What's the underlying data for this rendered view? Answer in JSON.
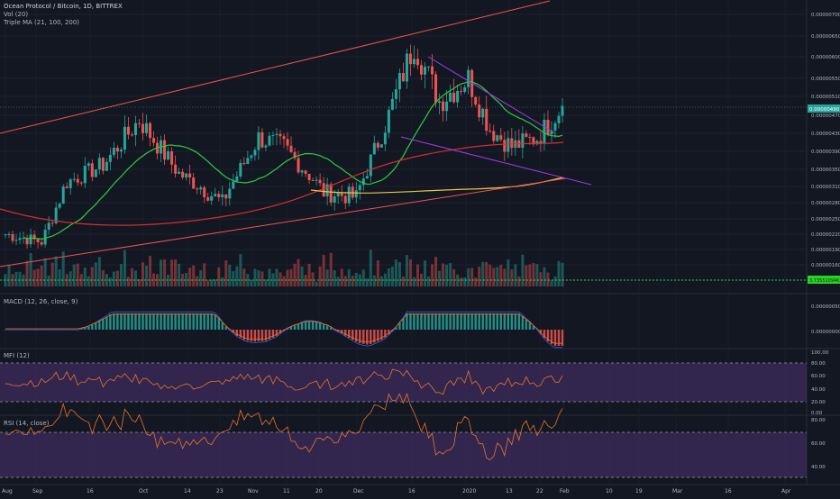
{
  "header": {
    "title": "Ocean Protocol / Bitcoin, 1D, BITTREX",
    "vol_label": "Vol (20)",
    "ma_label": "Triple MA (21, 100, 200)"
  },
  "panes": {
    "macd_label": "MACD (12, 26, close, 9)",
    "mfi_label": "MFI (12)",
    "rsi_label": "RSI (14, close)"
  },
  "price_axis": {
    "ticks": [
      "0.00000700",
      "0.00000650",
      "0.00000600",
      "0.00000550",
      "0.00000510",
      "0.00000470",
      "0.00000430",
      "0.00000390",
      "0.00000350",
      "0.00000310",
      "0.00000280",
      "0.00000250",
      "0.00000220",
      "0.00000190",
      "0.00000160",
      "0.00000130"
    ],
    "current_price": "0.00000490",
    "volume_label": "3.73551094K"
  },
  "macd_axis": {
    "ticks": [
      "0.00000050",
      "0.00000000"
    ]
  },
  "mfi_axis": {
    "ticks": [
      "100.00",
      "80.00",
      "60.00",
      "40.00",
      "20.00",
      "0.00"
    ]
  },
  "rsi_axis": {
    "ticks": [
      "80.00",
      "60.00",
      "40.00"
    ]
  },
  "time_axis": {
    "ticks": [
      "Aug",
      "Sep",
      "16",
      "Oct",
      "14",
      "23",
      "Nov",
      "11",
      "20",
      "Dec",
      "16",
      "2020",
      "13",
      "22",
      "Feb",
      "10",
      "19",
      "Mar",
      "16",
      "Apr"
    ]
  },
  "colors": {
    "background": "#131722",
    "up": "#26a69a",
    "down": "#ef5350",
    "ma21": "#2ecc40",
    "ma100": "#d32f2f",
    "ma200": "#e8c547",
    "channel": "#ef5350",
    "wedge": "#a33be0",
    "osc_line": "#e8742a",
    "osc_band": "#3b2a5a",
    "price_tag": "#26a69a"
  },
  "chart_data": {
    "type": "candlestick",
    "title": "Ocean Protocol / Bitcoin, 1D, BITTREX",
    "xlabel": "",
    "ylabel": "",
    "x_range": [
      "2019-08-26",
      "2020-04-05"
    ],
    "price_unit": "BTC",
    "approx_ohlc_keypoints": [
      {
        "date": "2019-08-26",
        "close": 2.2e-06
      },
      {
        "date": "2019-09-05",
        "close": 2.05e-06
      },
      {
        "date": "2019-09-12",
        "close": 3.2e-06
      },
      {
        "date": "2019-09-22",
        "close": 3.6e-06
      },
      {
        "date": "2019-10-02",
        "close": 4.6e-06
      },
      {
        "date": "2019-10-13",
        "close": 3.4e-06
      },
      {
        "date": "2019-10-25",
        "close": 2.8e-06
      },
      {
        "date": "2019-11-04",
        "close": 4.2e-06
      },
      {
        "date": "2019-11-11",
        "close": 4e-06
      },
      {
        "date": "2019-11-22",
        "close": 3e-06
      },
      {
        "date": "2019-12-01",
        "close": 2.9e-06
      },
      {
        "date": "2019-12-10",
        "close": 4.7e-06
      },
      {
        "date": "2019-12-17",
        "close": 6.3e-06
      },
      {
        "date": "2019-12-24",
        "close": 5e-06
      },
      {
        "date": "2020-01-01",
        "close": 5.5e-06
      },
      {
        "date": "2020-01-07",
        "close": 4.4e-06
      },
      {
        "date": "2020-01-13",
        "close": 4e-06
      },
      {
        "date": "2020-01-20",
        "close": 4.2e-06
      },
      {
        "date": "2020-01-27",
        "close": 4.9e-06
      }
    ],
    "moving_averages": [
      {
        "name": "MA 21",
        "period": 21
      },
      {
        "name": "MA 100",
        "period": 100
      },
      {
        "name": "MA 200",
        "period": 200
      }
    ],
    "indicators": {
      "macd": {
        "fast": 12,
        "slow": 26,
        "signal": 9
      },
      "mfi": {
        "period": 12,
        "bands": [
          20,
          80
        ]
      },
      "rsi": {
        "period": 14,
        "bands": [
          30,
          70
        ]
      }
    },
    "last_price": 4.9e-06,
    "grid": true,
    "legend": "top-left"
  }
}
